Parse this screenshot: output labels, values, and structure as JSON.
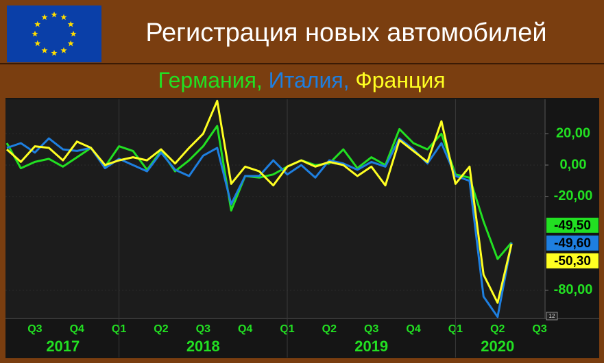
{
  "chart_data": {
    "type": "line",
    "title": "Регистрация новых автомобилей",
    "legend_separator": ",",
    "corner_label": "12",
    "categories": [
      null,
      null,
      "Q3",
      null,
      null,
      "Q4",
      null,
      null,
      "Q1",
      null,
      null,
      "Q2",
      null,
      null,
      "Q3",
      null,
      null,
      "Q4",
      null,
      null,
      "Q1",
      null,
      null,
      "Q2",
      null,
      null,
      "Q3",
      null,
      null,
      "Q4",
      null,
      null,
      "Q1",
      null,
      null,
      "Q2",
      null,
      null,
      "Q3"
    ],
    "years": [
      "2017",
      "2018",
      "2019",
      "2020"
    ],
    "ylim": [
      -98,
      42
    ],
    "yticks": [
      {
        "value": 20,
        "label": "20,00"
      },
      {
        "value": 0,
        "label": "0,00"
      },
      {
        "value": -20,
        "label": "-20,00"
      },
      {
        "value": -80,
        "label": "-80,00"
      }
    ],
    "grid": true,
    "series": [
      {
        "name": "Германия",
        "color": "#22e022",
        "values": [
          14,
          -2,
          2,
          4,
          -1,
          5,
          11,
          -1,
          12,
          9,
          -3,
          9,
          -4,
          3,
          12,
          25,
          -29,
          -7,
          -8,
          -6,
          -1,
          3,
          0,
          1,
          10,
          -2,
          5,
          0,
          23,
          14,
          10,
          20,
          -6,
          -8,
          -36,
          -60,
          -49.5,
          null,
          null
        ],
        "value_labels": [
          null,
          null,
          null,
          null,
          null,
          null,
          null,
          null,
          null,
          null,
          null,
          null,
          null,
          null,
          null,
          null,
          null,
          null,
          null,
          null,
          null,
          null,
          null,
          null,
          null,
          null,
          null,
          null,
          null,
          null,
          null,
          null,
          null,
          null,
          null,
          null,
          "-49,50",
          null,
          null
        ]
      },
      {
        "name": "Италия",
        "color": "#1e7fe0",
        "values": [
          11,
          14,
          8,
          17,
          10,
          9,
          11,
          -2,
          4,
          0,
          -4,
          8,
          -3,
          -7,
          6,
          11,
          -25,
          -7,
          -7,
          3,
          -6,
          0,
          -8,
          3,
          1,
          -3,
          2,
          -1,
          17,
          10,
          1,
          14,
          -7,
          -10,
          -84,
          -97,
          -49.6,
          null,
          null
        ],
        "value_labels": [
          null,
          null,
          null,
          null,
          null,
          null,
          null,
          null,
          null,
          null,
          null,
          null,
          null,
          null,
          null,
          null,
          null,
          null,
          null,
          null,
          null,
          null,
          null,
          null,
          null,
          null,
          null,
          null,
          null,
          null,
          null,
          null,
          null,
          null,
          null,
          null,
          "-49,60",
          null,
          null
        ]
      },
      {
        "name": "Франция",
        "color": "#ffff22",
        "values": [
          10,
          2,
          12,
          11,
          3,
          15,
          11,
          0,
          3,
          5,
          3,
          10,
          1,
          11,
          20,
          41,
          -12,
          -1,
          -4,
          -13,
          -1,
          3,
          -1,
          2,
          0,
          -7,
          -1,
          -13,
          16,
          9,
          2,
          28,
          -12,
          -1,
          -70,
          -88,
          -50.3,
          null,
          null
        ],
        "value_labels": [
          null,
          null,
          null,
          null,
          null,
          null,
          null,
          null,
          null,
          null,
          null,
          null,
          null,
          null,
          null,
          null,
          null,
          null,
          null,
          null,
          null,
          null,
          null,
          null,
          null,
          null,
          null,
          null,
          null,
          null,
          null,
          null,
          null,
          null,
          null,
          null,
          "-50,30",
          null,
          null
        ]
      }
    ]
  }
}
